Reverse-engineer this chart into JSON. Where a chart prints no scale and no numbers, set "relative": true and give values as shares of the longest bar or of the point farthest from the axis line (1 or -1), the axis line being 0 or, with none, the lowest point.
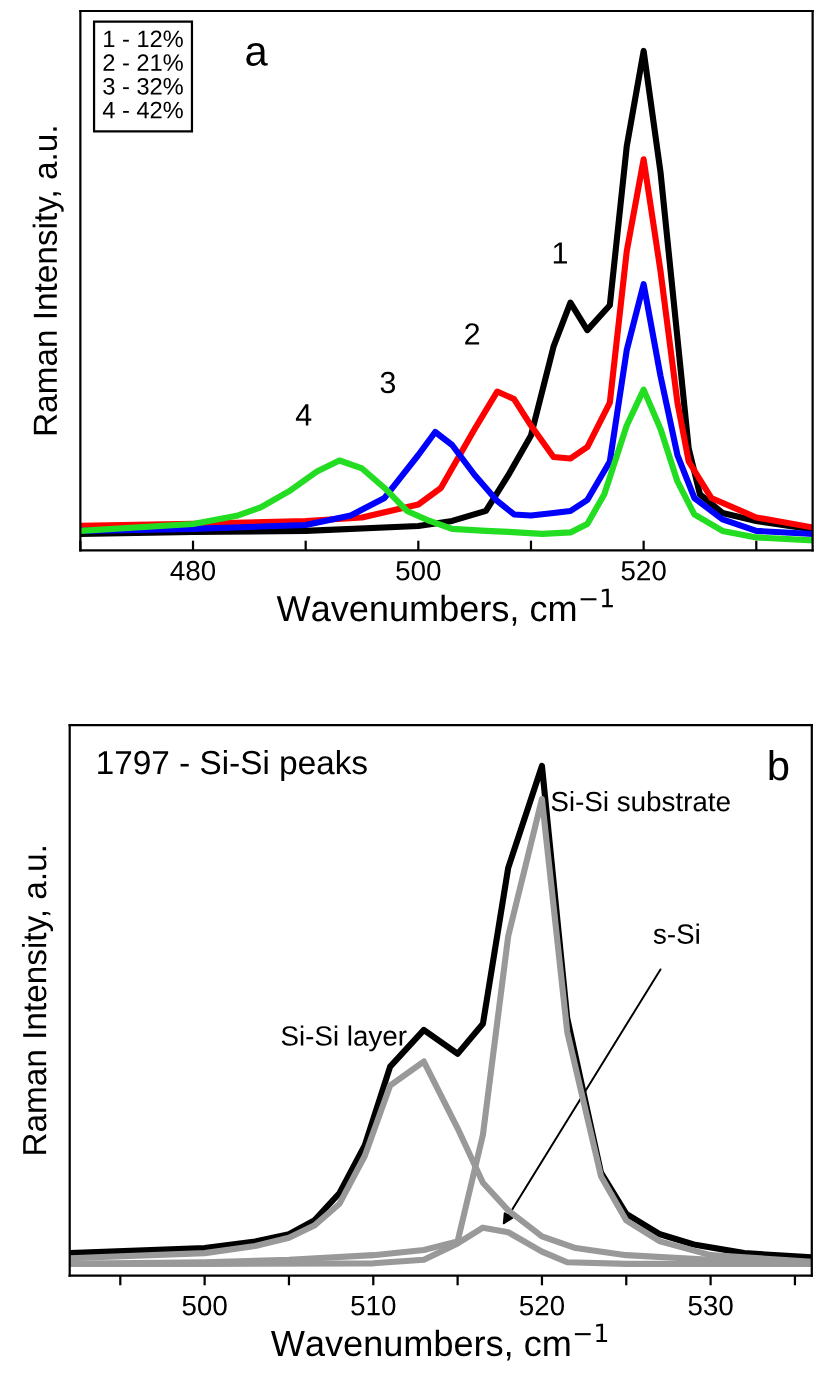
{
  "chart_data": [
    {
      "type": "line",
      "relative": true,
      "xlabel": "Wavenumbers, cm$^{−1}$",
      "ylabel": "Raman Intensity, a.u.",
      "xlim": [
        470,
        535
      ],
      "xticks": [
        {
          "value": 470,
          "label": null
        },
        480,
        {
          "value": 490,
          "label": null
        },
        500,
        {
          "value": 510,
          "label": null
        },
        520,
        {
          "value": 530,
          "label": null
        }
      ],
      "grid": false,
      "marker": "none",
      "line_style": "solid",
      "tick_labels": "x",
      "annotations": [
        "1 - 12%\n2 - 21%\n3 - 32%\n4 - 42%",
        "a"
      ],
      "series": [
        {
          "name": "1",
          "color": "#000000",
          "x": [
            470,
            480,
            490,
            500,
            503,
            506,
            508,
            510,
            512,
            513.5,
            515,
            517,
            518.5,
            520,
            521.5,
            524,
            525,
            527,
            530,
            535
          ],
          "values": [
            0.033,
            0.037,
            0.039,
            0.049,
            0.059,
            0.079,
            0.151,
            0.23,
            0.408,
            0.496,
            0.441,
            0.491,
            0.809,
            1.0,
            0.757,
            0.204,
            0.112,
            0.075,
            0.059,
            0.042
          ]
        },
        {
          "name": "2",
          "color": "#ff0000",
          "x": [
            470,
            480,
            490,
            495,
            500,
            502,
            505,
            507,
            508.5,
            510,
            512,
            513.5,
            515,
            517,
            518.5,
            520,
            521.5,
            523,
            524,
            526,
            530,
            535
          ],
          "values": [
            0.049,
            0.053,
            0.059,
            0.066,
            0.092,
            0.125,
            0.243,
            0.318,
            0.303,
            0.25,
            0.187,
            0.184,
            0.207,
            0.296,
            0.599,
            0.783,
            0.559,
            0.296,
            0.178,
            0.105,
            0.066,
            0.046
          ]
        },
        {
          "name": "3",
          "color": "#0000ff",
          "x": [
            470,
            480,
            490,
            494,
            497,
            500,
            501.5,
            503,
            505,
            507,
            508.5,
            510,
            512,
            513.5,
            515,
            517,
            518.5,
            520,
            521.5,
            523,
            524.5,
            527,
            530,
            535
          ],
          "values": [
            0.039,
            0.043,
            0.051,
            0.07,
            0.105,
            0.191,
            0.237,
            0.211,
            0.151,
            0.099,
            0.072,
            0.07,
            0.075,
            0.079,
            0.101,
            0.178,
            0.401,
            0.533,
            0.349,
            0.191,
            0.105,
            0.062,
            0.039,
            0.033
          ]
        },
        {
          "name": "4",
          "color": "#22dd22",
          "x": [
            470,
            480,
            484,
            486,
            488.5,
            491,
            493,
            495,
            497,
            499,
            501,
            503,
            506,
            508,
            511,
            513.5,
            515,
            516.5,
            518.5,
            520,
            521.5,
            523,
            524.5,
            527,
            530,
            535
          ],
          "values": [
            0.039,
            0.053,
            0.07,
            0.086,
            0.118,
            0.158,
            0.18,
            0.164,
            0.125,
            0.079,
            0.059,
            0.043,
            0.039,
            0.037,
            0.033,
            0.036,
            0.053,
            0.112,
            0.25,
            0.322,
            0.243,
            0.138,
            0.072,
            0.039,
            0.026,
            0.02
          ]
        }
      ]
    },
    {
      "type": "line",
      "relative": true,
      "xlabel": "Wavenumbers, cm$^{−1}$",
      "ylabel": "Raman Intensity, a.u.",
      "xlim": [
        492,
        536
      ],
      "xticks": [
        {
          "value": 495,
          "label": null
        },
        500,
        {
          "value": 505,
          "label": null
        },
        510,
        {
          "value": 515,
          "label": null
        },
        520,
        {
          "value": 525,
          "label": null
        },
        530,
        {
          "value": 535,
          "label": null
        }
      ],
      "grid": false,
      "marker": "none",
      "line_style": "solid",
      "tick_labels": "x",
      "annotations": [
        "1797 - Si-Si peaks",
        "b",
        {
          "text": "Si-Si layer",
          "x": 512,
          "y": 0.44
        },
        {
          "text": "Si-Si substrate",
          "x": 520.5,
          "y": 0.9
        },
        {
          "text": "s-Si",
          "x": 517.5,
          "y": 0.09
        }
      ],
      "series": [
        {
          "color": "#000000",
          "x": [
            492,
            500,
            503,
            505,
            506.5,
            508,
            509.5,
            511,
            513,
            515,
            516.5,
            518,
            520,
            521.5,
            523.5,
            525,
            527,
            529,
            532,
            536
          ],
          "values": [
            0.044,
            0.054,
            0.067,
            0.081,
            0.108,
            0.162,
            0.256,
            0.41,
            0.482,
            0.435,
            0.494,
            0.8,
            1.0,
            0.505,
            0.202,
            0.121,
            0.081,
            0.061,
            0.044,
            0.036
          ]
        },
        {
          "color": "#999999",
          "x": [
            492,
            500,
            505,
            510,
            513,
            515,
            516.5,
            518,
            520,
            521.5,
            523.5,
            525,
            527,
            530,
            536
          ],
          "values": [
            0.023,
            0.026,
            0.031,
            0.04,
            0.05,
            0.067,
            0.276,
            0.666,
            0.935,
            0.478,
            0.195,
            0.108,
            0.067,
            0.04,
            0.027
          ]
        },
        {
          "color": "#999999",
          "x": [
            492,
            500,
            503,
            505,
            506.5,
            508,
            509.5,
            511,
            513,
            515,
            516.5,
            518,
            520,
            522,
            525,
            530,
            536
          ],
          "values": [
            0.034,
            0.044,
            0.058,
            0.074,
            0.098,
            0.141,
            0.235,
            0.373,
            0.42,
            0.289,
            0.182,
            0.128,
            0.077,
            0.054,
            0.04,
            0.031,
            0.026
          ]
        },
        {
          "color": "#999999",
          "x": [
            492,
            500,
            510,
            513,
            515,
            516.5,
            518,
            520,
            521.5,
            525,
            536
          ],
          "values": [
            0.023,
            0.023,
            0.024,
            0.031,
            0.063,
            0.094,
            0.085,
            0.047,
            0.026,
            0.023,
            0.023
          ]
        }
      ]
    }
  ]
}
